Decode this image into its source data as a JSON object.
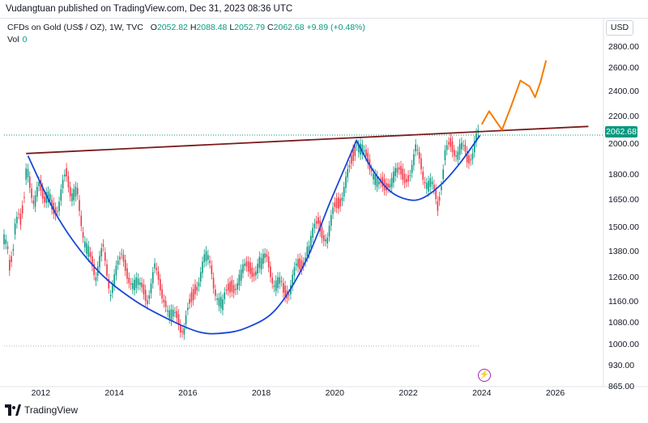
{
  "header": {
    "publisher": "Vudangtuan published on TradingView.com, Dec 31, 2023 08:36 UTC"
  },
  "legend": {
    "symbol": "CFDs on Gold (US$ / OZ), 1W, TVC",
    "o_label": "O",
    "o_value": "2052.82",
    "h_label": "H",
    "h_value": "2088.48",
    "l_label": "L",
    "l_value": "2052.79",
    "c_label": "C",
    "c_value": "2062.68",
    "change": "+9.89 (+0.48%)",
    "vol_label": "Vol",
    "vol_value": "0"
  },
  "currency": "USD",
  "last_price": "2062.68",
  "footer": {
    "brand": "TradingView"
  },
  "icons": {
    "alert": "lightning-bolt-icon",
    "logo": "tradingview-logo-icon"
  },
  "colors": {
    "up": "#089981",
    "down": "#f23645",
    "resistance": "#7b1c1c",
    "cup": "#1848d8",
    "projection": "#f57c00",
    "price_line": "#089981"
  },
  "chart_data": {
    "type": "line",
    "title": "",
    "xlabel": "",
    "ylabel": "",
    "log_scale": true,
    "ylim": [
      865,
      2900
    ],
    "xlim": [
      2011.0,
      2027.2
    ],
    "y_ticks": [
      "2800.00",
      "2600.00",
      "2400.00",
      "2200.00",
      "2000.00",
      "1800.00",
      "1650.00",
      "1500.00",
      "1380.00",
      "1260.00",
      "1160.00",
      "1080.00",
      "1000.00",
      "930.00",
      "865.00"
    ],
    "x_ticks": [
      "2012",
      "2014",
      "2016",
      "2018",
      "2020",
      "2022",
      "2024",
      "2026"
    ],
    "series": [
      {
        "name": "",
        "style": "candlestick-approx",
        "x": [
          2011.0,
          2011.15,
          2011.3,
          2011.45,
          2011.6,
          2011.7,
          2011.85,
          2012.0,
          2012.15,
          2012.3,
          2012.5,
          2012.7,
          2012.85,
          2013.0,
          2013.2,
          2013.35,
          2013.5,
          2013.7,
          2013.9,
          2014.2,
          2014.45,
          2014.7,
          2014.9,
          2015.1,
          2015.4,
          2015.6,
          2015.8,
          2015.95,
          2016.2,
          2016.5,
          2016.7,
          2016.95,
          2017.2,
          2017.45,
          2017.7,
          2018.0,
          2018.2,
          2018.4,
          2018.6,
          2018.8,
          2019.0,
          2019.3,
          2019.55,
          2019.8,
          2020.0,
          2020.2,
          2020.4,
          2020.6,
          2020.8,
          2021.0,
          2021.2,
          2021.45,
          2021.7,
          2022.0,
          2022.2,
          2022.4,
          2022.6,
          2022.8,
          2023.0,
          2023.2,
          2023.4,
          2023.6,
          2023.8,
          2023.95
        ],
        "values": [
          1420,
          1330,
          1480,
          1550,
          1800,
          1750,
          1650,
          1720,
          1680,
          1600,
          1640,
          1780,
          1700,
          1660,
          1450,
          1330,
          1290,
          1370,
          1220,
          1330,
          1270,
          1200,
          1190,
          1280,
          1180,
          1090,
          1080,
          1070,
          1230,
          1340,
          1250,
          1140,
          1230,
          1270,
          1300,
          1330,
          1320,
          1240,
          1200,
          1230,
          1300,
          1420,
          1500,
          1470,
          1580,
          1700,
          1800,
          2050,
          1900,
          1880,
          1700,
          1780,
          1780,
          1820,
          1930,
          1830,
          1720,
          1640,
          1900,
          2000,
          1950,
          1920,
          1980,
          2062.68
        ]
      },
      {
        "name": "",
        "style": "cup-curve-1",
        "x": [
          2011.65,
          2012.5,
          2013.5,
          2014.5,
          2015.5,
          2016.3,
          2016.9,
          2017.6,
          2018.4,
          2019.2,
          2019.9,
          2020.6
        ],
        "values": [
          1920,
          1540,
          1300,
          1170,
          1090,
          1045,
          1040,
          1060,
          1130,
          1330,
          1650,
          2030
        ]
      },
      {
        "name": "",
        "style": "cup-curve-2",
        "x": [
          2020.6,
          2021.0,
          2021.5,
          2022.0,
          2022.4,
          2022.9,
          2023.4,
          2023.95
        ],
        "values": [
          2020,
          1840,
          1700,
          1650,
          1660,
          1740,
          1870,
          2060
        ]
      },
      {
        "name": "",
        "style": "resistance-line",
        "x": [
          2011.6,
          2026.9
        ],
        "values": [
          1935,
          2125
        ]
      },
      {
        "name": "",
        "style": "projection",
        "x": [
          2024.0,
          2024.2,
          2024.55,
          2024.8,
          2025.05,
          2025.3,
          2025.45,
          2025.6,
          2025.75
        ],
        "values": [
          2140,
          2240,
          2100,
          2280,
          2490,
          2440,
          2350,
          2480,
          2670
        ]
      }
    ]
  }
}
